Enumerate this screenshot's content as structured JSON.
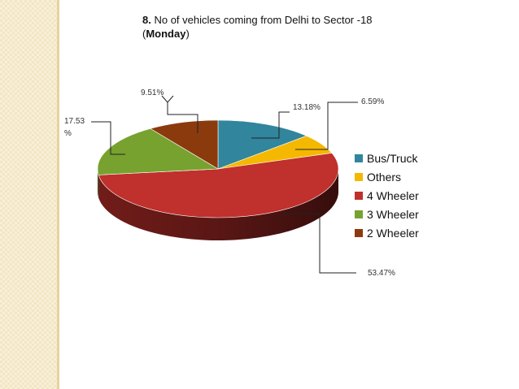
{
  "title": {
    "number": "8.",
    "text": "No of vehicles coming from Delhi to Sector -18",
    "day_open": "(",
    "day": "Monday",
    "day_close": ")"
  },
  "chart_data": {
    "type": "pie",
    "title": "8. No of vehicles coming from Delhi to Sector -18 (Monday)",
    "legend_position": "right",
    "slices": [
      {
        "name": "Bus/Truck",
        "value": 13.18,
        "label": "13.18%",
        "color": "#31859c"
      },
      {
        "name": "Others",
        "value": 6.59,
        "label": "6.59%",
        "color": "#f5b800"
      },
      {
        "name": "4 Wheeler",
        "value": 53.47,
        "label": "53.47%",
        "color": "#c0302c"
      },
      {
        "name": "3 Wheeler",
        "value": 17.53,
        "label": "17.53 %",
        "color": "#77a22f"
      },
      {
        "name": "2 Wheeler",
        "value": 9.51,
        "label": "9.51%",
        "color": "#8b3a0e"
      }
    ]
  }
}
